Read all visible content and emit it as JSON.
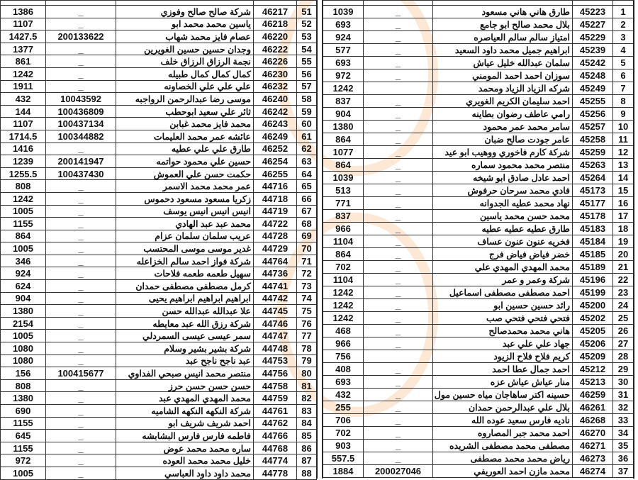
{
  "left_table": {
    "rows": [
      [
        "51",
        "46217",
        "شركة صالح صالح وفوزي",
        "_",
        "1386"
      ],
      [
        "52",
        "46218",
        "ياسين محمد محمد ابو",
        "_",
        "1107"
      ],
      [
        "53",
        "46220",
        "عصام فايز محمد شهاب",
        "200133622",
        "1427.5"
      ],
      [
        "54",
        "46222",
        "وجدان حسين حسين الغويرين",
        "_",
        "1377"
      ],
      [
        "55",
        "46226",
        "نجمة الرزاق الرزاق خلف",
        "_",
        "861"
      ],
      [
        "56",
        "46230",
        "كمال كمال كمال طبيله",
        "_",
        "1242"
      ],
      [
        "57",
        "46232",
        "علي علي علي الخصاونه",
        "_",
        "1911"
      ],
      [
        "58",
        "46240",
        "موسى رضا عبدالرحمن الرواجبه",
        "10043592",
        "432"
      ],
      [
        "59",
        "46242",
        "ثائر علي سعيد ابوحطب",
        "100436809",
        "144"
      ],
      [
        "60",
        "46243",
        "محمد فايز محمد غبابن",
        "100437134",
        "1107"
      ],
      [
        "61",
        "46249",
        "عائشه عمر محمد العليمات",
        "100344882",
        "1714.5"
      ],
      [
        "62",
        "46252",
        "طارق علي علي عطيه",
        "_",
        "1416"
      ],
      [
        "63",
        "46254",
        "حسين علي محمود حواتمه",
        "200141947",
        "1239"
      ],
      [
        "64",
        "46255",
        "حكمت حسن علي العموش",
        "100437430",
        "1255.5"
      ],
      [
        "65",
        "44716",
        "عمر محمد محمد الاسمر",
        "_",
        "808"
      ],
      [
        "66",
        "44718",
        "زكريا مسعود مسعود دحموس",
        "_",
        "1242"
      ],
      [
        "67",
        "44719",
        "انيس انيس انيس يوسف",
        "_",
        "1005"
      ],
      [
        "68",
        "44722",
        "محمد عبد عبد الهادي",
        "_",
        "1155"
      ],
      [
        "69",
        "44728",
        "عريب سلمان سلمان عزام",
        "_",
        "864"
      ],
      [
        "70",
        "44729",
        "غدير موسى موسى المحتسب",
        "_",
        "1005"
      ],
      [
        "71",
        "44764",
        "شركة فواز احمد سالم الخزاعله",
        "_",
        "346"
      ],
      [
        "72",
        "44736",
        "سهيل طعمه طعمه فلاحات",
        "_",
        "924"
      ],
      [
        "73",
        "44741",
        "كرمل مصطفى مصطفى حمدان",
        "_",
        "624"
      ],
      [
        "74",
        "44742",
        "ابراهيم ابراهيم ابراهيم يحيى",
        "_",
        "904"
      ],
      [
        "75",
        "44745",
        "علا عبدالله عبدالله حسن",
        "_",
        "1380"
      ],
      [
        "76",
        "44746",
        "شركة رزق الله عبد معايطه",
        "_",
        "2154"
      ],
      [
        "77",
        "44747",
        "سمر عيسى عيسى السمردلي",
        "_",
        "1005"
      ],
      [
        "78",
        "44748",
        "شركة بشير بشير وسلام",
        "_",
        "1080"
      ],
      [
        "79",
        "44753",
        "عبد ناجح ناجح عبد",
        "_",
        "1080"
      ],
      [
        "80",
        "44756",
        "منتصر محمد انيس صبحي الفداوي",
        "100415677",
        "156"
      ],
      [
        "81",
        "44758",
        "حسن حسن حسن حرز",
        "_",
        "808"
      ],
      [
        "82",
        "44759",
        "محمد المهدي المهدي عبد",
        "_",
        "1380"
      ],
      [
        "83",
        "44761",
        "شركة النكهه النكهه الشاميه",
        "_",
        "690"
      ],
      [
        "84",
        "44762",
        "احمد شريف شريف ابو",
        "_",
        "1155"
      ],
      [
        "85",
        "44766",
        "فاطمه فارس فارس البشابشه",
        "_",
        "645"
      ],
      [
        "86",
        "44768",
        "ساره محمد محمد عوض",
        "_",
        "1155"
      ],
      [
        "87",
        "44774",
        "خليل محمد محمد العوده",
        "_",
        "972"
      ],
      [
        "88",
        "44778",
        "محمد داود داود العباسي",
        "_",
        "1005"
      ]
    ]
  },
  "right_table": {
    "rows": [
      [
        "1",
        "45223",
        "طارق هاني هاني مسعود",
        "_",
        "1039"
      ],
      [
        "2",
        "45227",
        "بلال محمد صالح ابو جامع",
        "_",
        "693"
      ],
      [
        "3",
        "45229",
        "امتياز سالم سالم العياصره",
        "_",
        "924"
      ],
      [
        "4",
        "45239",
        "ابراهيم جميل محمد داود السعيد",
        "_",
        "577"
      ],
      [
        "5",
        "45242",
        "سلمان عبدالله خليل عياش",
        "_",
        "693"
      ],
      [
        "6",
        "45248",
        "سوزان احمد احمد المومني",
        "_",
        "972"
      ],
      [
        "7",
        "45249",
        "شركه الزياد الزياد ومحمد",
        "",
        "1242"
      ],
      [
        "8",
        "45255",
        "احمد سليمان الكريم الغويري",
        "_",
        "837"
      ],
      [
        "9",
        "45256",
        "رامي عاطف رضوان بطاينه",
        "_",
        "904"
      ],
      [
        "10",
        "45257",
        "سامر محمد عمر محمود",
        "_",
        "1380"
      ],
      [
        "11",
        "45258",
        "عامر جودت صالح ضبان",
        "_",
        "864"
      ],
      [
        "12",
        "45259",
        "شركة كارم فاخوري ووهيب ابو عيد",
        "_",
        "1077"
      ],
      [
        "13",
        "45263",
        "منتصر محمد محمود سماره",
        "_",
        "864"
      ],
      [
        "14",
        "45264",
        "احمد عادل صادق ابو شيخه",
        "_",
        "1039"
      ],
      [
        "15",
        "45173",
        "فادي محمد سرحان حرفوش",
        "_",
        "513"
      ],
      [
        "16",
        "45177",
        "نهاد محمد عطيه الجدوانه",
        "_",
        "771"
      ],
      [
        "17",
        "45178",
        "محمد حسن محمد ياسين",
        "_",
        "837"
      ],
      [
        "18",
        "45183",
        "طارق عطيه عطيه عطيه",
        "_",
        "966"
      ],
      [
        "19",
        "45184",
        "فخريه عنون عنون عساف",
        "_",
        "1104"
      ],
      [
        "20",
        "45185",
        "خضر فياض فياض فرج",
        "_",
        "864"
      ],
      [
        "21",
        "45189",
        "محمد المهدي المهدي علي",
        "_",
        "702"
      ],
      [
        "22",
        "45196",
        "شركة وعمر و عمر",
        "_",
        "1104"
      ],
      [
        "23",
        "45199",
        "احمد مصطفى مصطفى اسماعيل",
        "_",
        "1242"
      ],
      [
        "24",
        "45200",
        "رائد حسين حسين ابو",
        "_",
        "1242"
      ],
      [
        "25",
        "45202",
        "فتحي فتحي فتحي صب",
        "_",
        "1242"
      ],
      [
        "26",
        "45205",
        "هاني محمد محمدصالح",
        "_",
        "468"
      ],
      [
        "27",
        "45206",
        "جهاد علي علي عبد",
        "_",
        "966"
      ],
      [
        "28",
        "45209",
        "كريم فلاح فلاح الزيود",
        "",
        "756"
      ],
      [
        "29",
        "45212",
        "احمد جمال عطا احمد",
        "_",
        "408"
      ],
      [
        "30",
        "45213",
        "منار عياش عياش عزه",
        "_",
        "693"
      ],
      [
        "31",
        "46259",
        "حسينه اكتر ساهاجان مياه حسين مول",
        "_",
        "432"
      ],
      [
        "32",
        "46261",
        "بلال علي عبدالرحمن حمدان",
        "_",
        "255"
      ],
      [
        "33",
        "46268",
        "ناديه فارس سعيد عوده الله",
        "_",
        "706"
      ],
      [
        "34",
        "46270",
        "احمد محمد جبر المصاروه",
        "_",
        "702"
      ],
      [
        "35",
        "46271",
        "مصطفى محمد مصطفى الشريده",
        "_",
        "903"
      ],
      [
        "36",
        "46273",
        "رياض محمد محمد مصطفى",
        "_",
        "557.5"
      ],
      [
        "37",
        "46274",
        "محمد مازن احمد العوريفي",
        "200027046",
        "1884"
      ]
    ]
  },
  "watermark": {
    "color": "#f0963c"
  }
}
